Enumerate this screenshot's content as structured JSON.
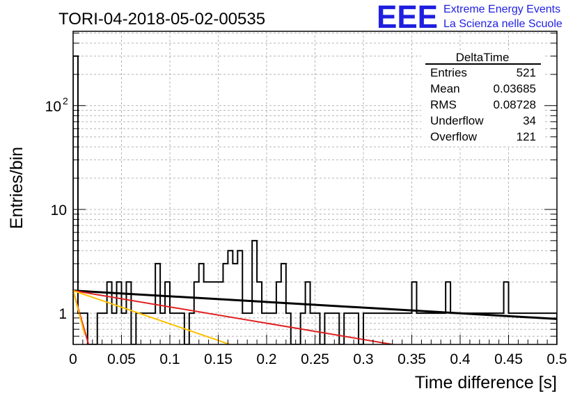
{
  "chart_data": {
    "type": "bar",
    "title": "TORI-04-2018-05-02-00535",
    "xlabel": "Time difference [s]",
    "ylabel": "Entries/bin",
    "xlim": [
      0,
      0.5
    ],
    "ylim": [
      0.5,
      520
    ],
    "y_scale": "log",
    "grid": true,
    "bin_width": 0.005,
    "x_ticks": [
      {
        "value": 0,
        "label": "0"
      },
      {
        "value": 0.05,
        "label": "0.05"
      },
      {
        "value": 0.1,
        "label": "0.1"
      },
      {
        "value": 0.15,
        "label": "0.15"
      },
      {
        "value": 0.2,
        "label": "0.2"
      },
      {
        "value": 0.25,
        "label": "0.25"
      },
      {
        "value": 0.3,
        "label": "0.3"
      },
      {
        "value": 0.35,
        "label": "0.35"
      },
      {
        "value": 0.4,
        "label": "0.4"
      },
      {
        "value": 0.45,
        "label": "0.45"
      },
      {
        "value": 0.5,
        "label": "0.5"
      }
    ],
    "y_ticks": [
      {
        "value": 1,
        "label": "1"
      },
      {
        "value": 10,
        "label": "10"
      },
      {
        "value": 100,
        "label": "10",
        "exponent": "2"
      }
    ],
    "histogram_values": [
      300,
      1,
      1,
      0,
      0,
      1,
      1,
      2,
      1,
      2,
      1,
      2,
      0,
      1,
      1,
      1,
      1,
      3,
      1,
      2,
      1,
      1,
      1,
      0,
      1,
      2,
      3,
      2,
      2,
      2,
      2,
      3,
      4,
      3,
      4,
      1,
      1,
      5,
      2,
      1,
      1,
      1,
      2,
      3,
      1,
      0,
      0,
      1,
      2,
      1,
      1,
      0,
      1,
      1,
      1,
      0,
      1,
      1,
      1,
      0,
      1,
      1,
      1,
      1,
      1,
      1,
      1,
      1,
      1,
      1,
      2,
      1,
      1,
      1,
      1,
      1,
      1,
      2,
      1,
      1,
      1,
      1,
      1,
      1,
      1,
      1,
      1,
      1,
      1,
      2,
      1,
      1,
      1,
      1,
      1,
      1,
      1,
      1,
      1,
      1
    ],
    "fit_lines": [
      {
        "color": "#000000",
        "x": [
          0,
          0.5
        ],
        "y": [
          1.65,
          0.88
        ]
      },
      {
        "color": "#e02020",
        "x": [
          0,
          0.33
        ],
        "y": [
          1.65,
          0.5
        ]
      },
      {
        "color": "#ffc000",
        "x": [
          0,
          0.162
        ],
        "y": [
          1.65,
          0.5
        ]
      },
      {
        "color": "#e02020",
        "x": [
          0,
          0.016
        ],
        "y": [
          1.65,
          0.5
        ]
      },
      {
        "color": "#ffc000",
        "x": [
          0,
          0.012
        ],
        "y": [
          1.65,
          0.62
        ]
      }
    ]
  },
  "stats_box": {
    "title": "DeltaTime",
    "rows": [
      {
        "label": "Entries",
        "value": "521"
      },
      {
        "label": "Mean",
        "value": "0.03685"
      },
      {
        "label": "RMS",
        "value": "0.08728"
      },
      {
        "label": "Underflow",
        "value": "34"
      },
      {
        "label": "Overflow",
        "value": "121"
      }
    ]
  },
  "logo": {
    "mark": "EEE",
    "line1": "Extreme Energy Events",
    "line2": "La Scienza nelle Scuole"
  }
}
